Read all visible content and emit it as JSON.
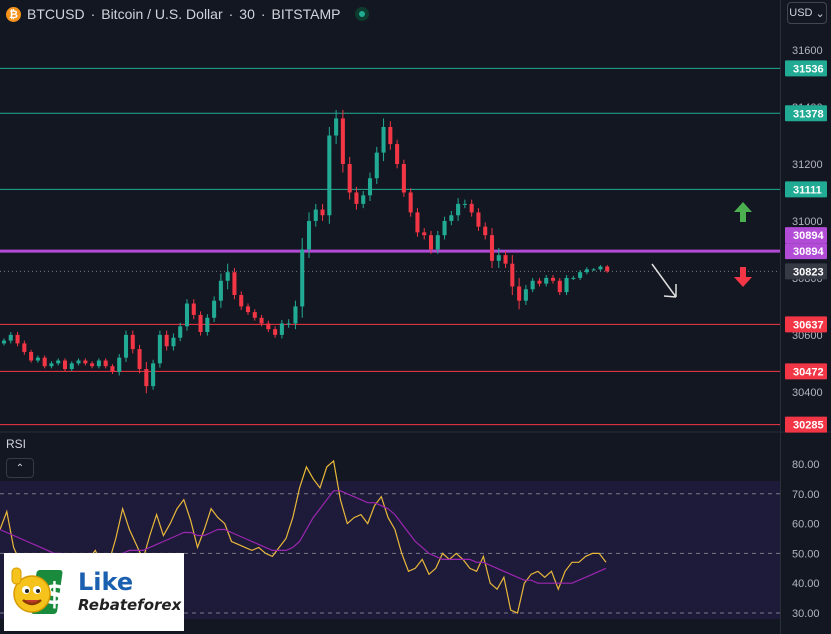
{
  "header": {
    "symbol": "BTCUSD",
    "description": "Bitcoin / U.S. Dollar",
    "timeframe": "30",
    "exchange": "BITSTAMP",
    "separator": "·",
    "coin_glyph": "₿"
  },
  "currency_button": {
    "label": "USD",
    "chevron": "⌄"
  },
  "rsi_panel": {
    "label": "RSI",
    "collapse_glyph": "⌃"
  },
  "logo": {
    "like": "Like",
    "name": "Rebateforex"
  },
  "colors": {
    "background": "#131722",
    "up": "#22ab94",
    "down": "#f23645",
    "support": "#f23645",
    "resistance": "#22ab94",
    "pivot": "#b24bd6",
    "rsi": "#e8b83a",
    "rsi_ma": "#9c27b0",
    "rsi_band": "#1e1a3a"
  },
  "chart_data": [
    {
      "type": "candlestick",
      "title": "BTCUSD · Bitcoin / U.S. Dollar · 30 · BITSTAMP",
      "ylim": [
        30280,
        31660
      ],
      "y_ticks": [
        30400,
        30600,
        30800,
        31000,
        31200,
        31400,
        31600
      ],
      "current_price": 30823,
      "horizontal_levels": [
        {
          "value": 31536,
          "kind": "resistance"
        },
        {
          "value": 31378,
          "kind": "resistance"
        },
        {
          "value": 31111,
          "kind": "resistance"
        },
        {
          "value": 30894,
          "kind": "pivot"
        },
        {
          "value": 30637,
          "kind": "support"
        },
        {
          "value": 30472,
          "kind": "support"
        },
        {
          "value": 30285,
          "kind": "support"
        }
      ],
      "pivot_badges": [
        30894,
        30894
      ],
      "annotations": [
        "up-arrow",
        "down-arrow",
        "pointer-arrow"
      ],
      "closes": [
        30580,
        30600,
        30570,
        30540,
        30510,
        30520,
        30490,
        30500,
        30510,
        30480,
        30500,
        30510,
        30500,
        30490,
        30510,
        30490,
        30470,
        30520,
        30600,
        30550,
        30480,
        30420,
        30500,
        30600,
        30560,
        30590,
        30630,
        30710,
        30670,
        30610,
        30660,
        30720,
        30790,
        30820,
        30740,
        30700,
        30680,
        30660,
        30640,
        30620,
        30600,
        30640,
        30640,
        30700,
        30900,
        31000,
        31040,
        31020,
        31300,
        31360,
        31200,
        31100,
        31060,
        31090,
        31150,
        31240,
        31330,
        31270,
        31200,
        31100,
        31030,
        30960,
        30950,
        30900,
        30950,
        31000,
        31020,
        31060,
        31060,
        31030,
        30980,
        30950,
        30860,
        30880,
        30850,
        30770,
        30720,
        30760,
        30790,
        30780,
        30800,
        30790,
        30750,
        30800,
        30800,
        30820,
        30830,
        30830,
        30840,
        30823
      ],
      "volatility": [
        15,
        20,
        20,
        20,
        15,
        15,
        15,
        15,
        15,
        15,
        15,
        15,
        15,
        15,
        15,
        15,
        15,
        25,
        30,
        30,
        30,
        50,
        25,
        30,
        30,
        30,
        25,
        30,
        30,
        25,
        25,
        30,
        50,
        60,
        30,
        25,
        20,
        20,
        20,
        20,
        20,
        25,
        30,
        40,
        80,
        60,
        40,
        40,
        60,
        60,
        60,
        50,
        40,
        30,
        40,
        40,
        60,
        40,
        30,
        30,
        30,
        30,
        30,
        30,
        30,
        30,
        30,
        40,
        30,
        30,
        30,
        30,
        50,
        50,
        30,
        60,
        60,
        30,
        20,
        20,
        20,
        20,
        20,
        20,
        15,
        15,
        15,
        10,
        10,
        10
      ]
    },
    {
      "type": "line",
      "title": "RSI",
      "ylim": [
        28,
        84
      ],
      "y_ticks": [
        30,
        40,
        50,
        60,
        70,
        80
      ],
      "overbought": 70,
      "midline": 50,
      "oversold": 30,
      "series": [
        {
          "values": [
            58,
            64,
            52,
            47,
            44,
            45,
            46,
            47,
            44,
            46,
            48,
            49,
            45,
            48,
            51,
            46,
            47,
            55,
            65,
            58,
            53,
            48,
            56,
            63,
            56,
            60,
            65,
            68,
            61,
            52,
            58,
            65,
            62,
            60,
            54,
            53,
            52,
            51,
            52,
            50,
            49,
            52,
            55,
            62,
            72,
            79,
            75,
            72,
            79,
            81,
            68,
            60,
            62,
            63,
            60,
            66,
            69,
            62,
            58,
            50,
            44,
            45,
            48,
            43,
            45,
            50,
            48,
            50,
            48,
            45,
            44,
            49,
            40,
            38,
            42,
            31,
            30,
            40,
            43,
            44,
            42,
            44,
            38,
            44,
            47,
            47,
            49,
            50,
            50,
            47
          ]
        },
        {
          "values": [
            58,
            57,
            56,
            55,
            54,
            53,
            52,
            51,
            50,
            50,
            49,
            49,
            49,
            49,
            49,
            49,
            49,
            49,
            50,
            51,
            51,
            51,
            52,
            53,
            54,
            55,
            56,
            57,
            57,
            56,
            56,
            57,
            58,
            58,
            57,
            56,
            55,
            54,
            53,
            52,
            51,
            51,
            51,
            52,
            54,
            58,
            62,
            65,
            68,
            71,
            71,
            70,
            69,
            68,
            67,
            67,
            66,
            65,
            63,
            60,
            57,
            54,
            52,
            50,
            49,
            48,
            48,
            48,
            48,
            48,
            47,
            47,
            46,
            45,
            44,
            43,
            42,
            41,
            41,
            40,
            40,
            40,
            40,
            40,
            40,
            41,
            42,
            43,
            44,
            45
          ]
        }
      ]
    }
  ]
}
